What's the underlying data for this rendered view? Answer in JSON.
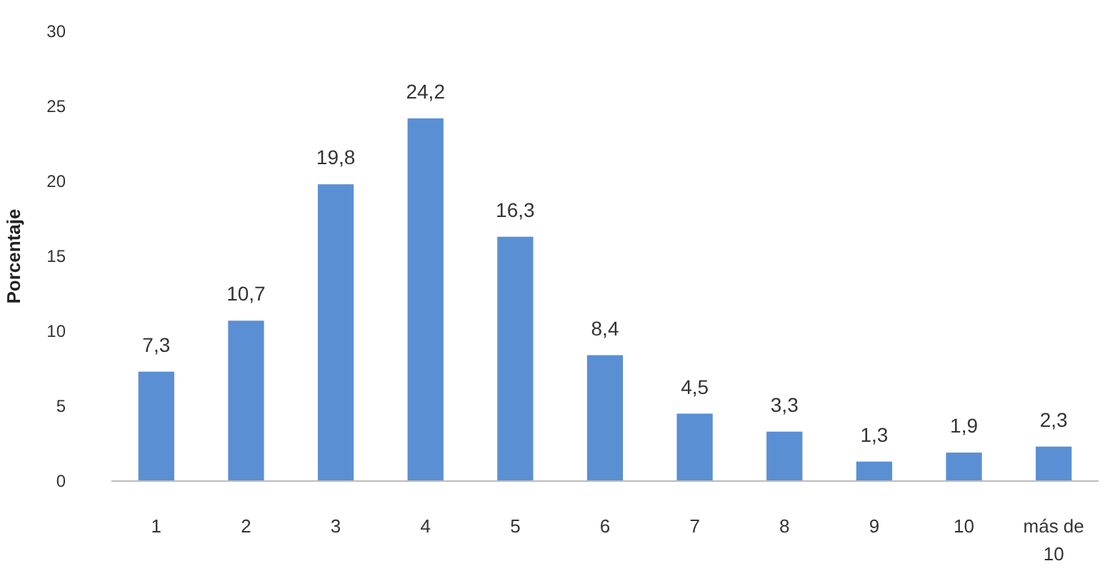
{
  "chart_data": {
    "type": "bar",
    "ylabel": "Porcentaje",
    "categories": [
      "1",
      "2",
      "3",
      "4",
      "5",
      "6",
      "7",
      "8",
      "9",
      "10",
      "más de 10"
    ],
    "values": [
      7.3,
      10.7,
      19.8,
      24.2,
      16.3,
      8.4,
      4.5,
      3.3,
      1.3,
      1.9,
      2.3
    ],
    "value_labels": [
      "7,3",
      "10,7",
      "19,8",
      "24,2",
      "16,3",
      "8,4",
      "4,5",
      "3,3",
      "1,3",
      "1,9",
      "2,3"
    ],
    "color": "#5b8fd3",
    "ylim": [
      0,
      30
    ],
    "yticks": [
      0,
      5,
      10,
      15,
      20,
      25,
      30
    ],
    "grid": false
  }
}
